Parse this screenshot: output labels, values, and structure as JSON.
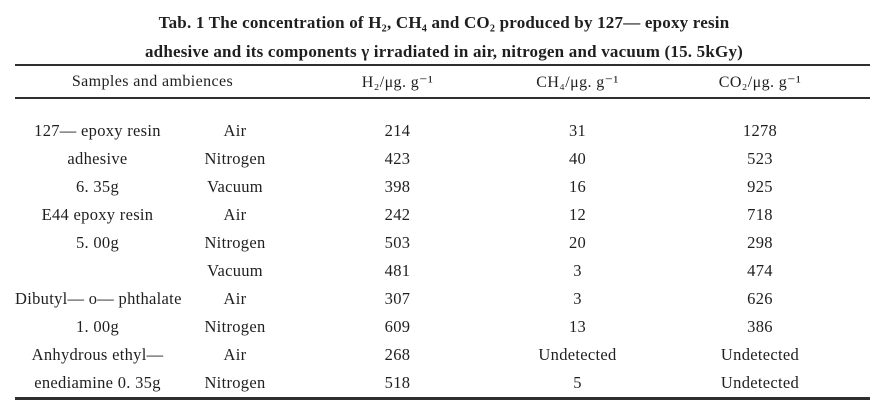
{
  "page": {
    "background": "#ffffff",
    "text_color": "#1f1f1f",
    "rule_color": "#2f2f2f"
  },
  "title": {
    "line1": "Tab. 1 The concentration of H₂, CH₄ and CO₂ produced by 127— epoxy resin",
    "line2": "adhesive and its components γ irradiated in air, nitrogen and vacuum (15. 5kGy)"
  },
  "table": {
    "headers": {
      "samples_ambiences": "Samples and ambiences",
      "h2": "H₂/μg. g⁻¹",
      "ch4": "CH₄/μg. g⁻¹",
      "co2": "CO₂/μg. g⁻¹"
    },
    "rows": [
      {
        "sample": "127— epoxy resin",
        "ambience": "Air",
        "h2": "214",
        "ch4": "31",
        "co2": "1278"
      },
      {
        "sample": "adhesive",
        "ambience": "Nitrogen",
        "h2": "423",
        "ch4": "40",
        "co2": "523"
      },
      {
        "sample": "6. 35g",
        "ambience": "Vacuum",
        "h2": "398",
        "ch4": "16",
        "co2": "925"
      },
      {
        "sample": "E44 epoxy resin",
        "ambience": "Air",
        "h2": "242",
        "ch4": "12",
        "co2": "718"
      },
      {
        "sample": "5. 00g",
        "ambience": "Nitrogen",
        "h2": "503",
        "ch4": "20",
        "co2": "298"
      },
      {
        "sample": "",
        "ambience": "Vacuum",
        "h2": "481",
        "ch4": "3",
        "co2": "474"
      },
      {
        "sample": "Dibutyl— o— phthalate",
        "ambience": "Air",
        "h2": "307",
        "ch4": "3",
        "co2": "626"
      },
      {
        "sample": "1. 00g",
        "ambience": "Nitrogen",
        "h2": "609",
        "ch4": "13",
        "co2": "386"
      },
      {
        "sample": "Anhydrous ethyl—",
        "ambience": "Air",
        "h2": "268",
        "ch4": "Undetected",
        "co2": "Undetected"
      },
      {
        "sample": "enediamine 0. 35g",
        "ambience": "Nitrogen",
        "h2": "518",
        "ch4": "5",
        "co2": "Undetected"
      }
    ]
  }
}
